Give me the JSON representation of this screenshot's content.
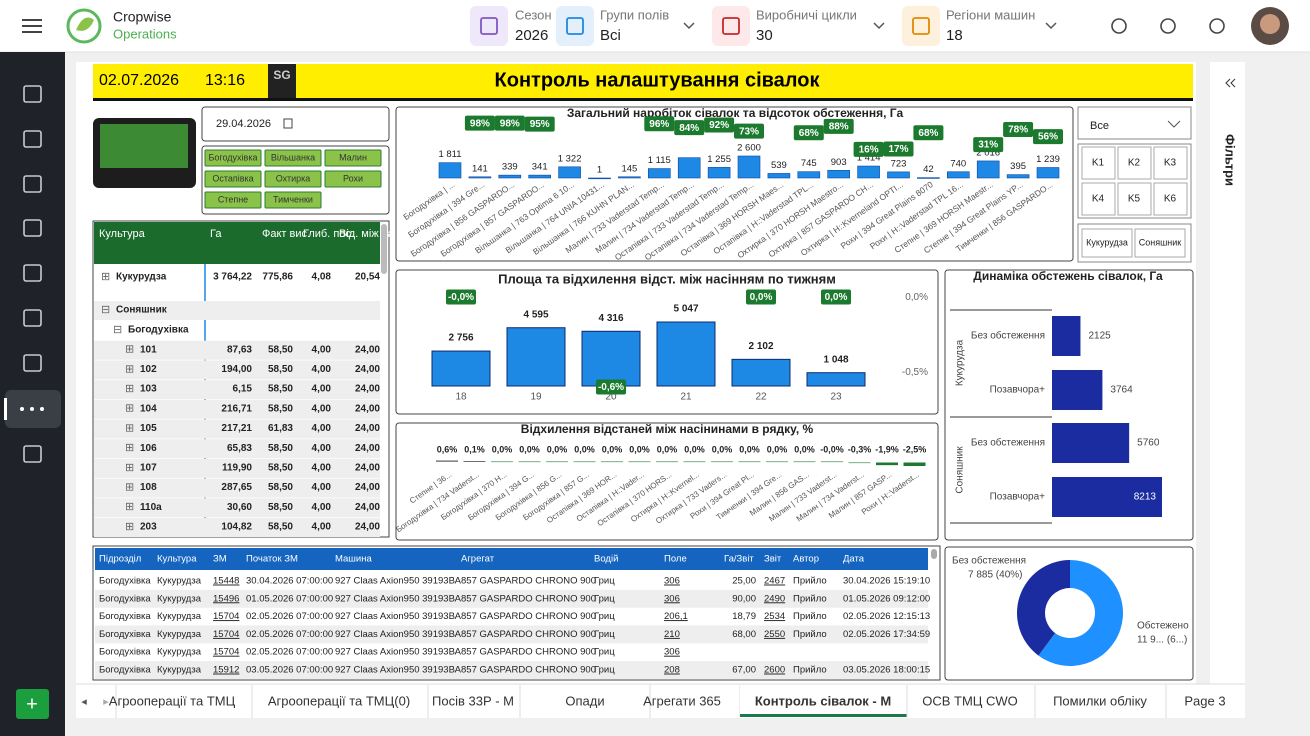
{
  "app": {
    "logo_line1": "Cropwise",
    "logo_line2": "Operations",
    "filters": [
      {
        "label": "Сезон",
        "value": "2026"
      },
      {
        "label": "Групи полів",
        "value": "Всі"
      },
      {
        "label": "Виробничі цикли",
        "value": "30"
      },
      {
        "label": "Регіони машин",
        "value": "18"
      }
    ]
  },
  "report": {
    "date": "02.07.2026",
    "time": "13:16",
    "logo": "SG",
    "title": "Контроль налаштування сівалок",
    "date_picker": "29.04.2026",
    "units": [
      "Богодухівка",
      "Вільшанка",
      "Малин",
      "Остапівка",
      "Охтирка",
      "Рохи",
      "Степне",
      "Тимченки"
    ],
    "slicer_all": "Все",
    "slicer_k": [
      "K1",
      "K2",
      "K3",
      "K4",
      "K5",
      "K6"
    ],
    "slicer_crops": [
      "Кукурудза",
      "Соняшник"
    ],
    "filters_pane": "Фільтри"
  },
  "tree_table": {
    "headers": [
      "Культура",
      "Га",
      "Факт вис.",
      "Глиб. пос.",
      "Від. між нас."
    ],
    "groups": [
      {
        "label": "Кукурудза",
        "cells": [
          "3 764,22",
          "775,86",
          "4,08",
          "20,54"
        ]
      },
      {
        "label": "Соняшник",
        "children": [
          {
            "label": "Богодухівка",
            "children": [
              {
                "label": "101",
                "cells": [
                  "87,63",
                  "58,50",
                  "4,00",
                  "24,00"
                ]
              },
              {
                "label": "102",
                "cells": [
                  "194,00",
                  "58,50",
                  "4,00",
                  "24,00"
                ]
              },
              {
                "label": "103",
                "cells": [
                  "6,15",
                  "58,50",
                  "4,00",
                  "24,00"
                ]
              },
              {
                "label": "104",
                "cells": [
                  "216,71",
                  "58,50",
                  "4,00",
                  "24,00"
                ]
              },
              {
                "label": "105",
                "cells": [
                  "217,21",
                  "61,83",
                  "4,00",
                  "24,00"
                ]
              },
              {
                "label": "106",
                "cells": [
                  "65,83",
                  "58,50",
                  "4,00",
                  "24,00"
                ]
              },
              {
                "label": "107",
                "cells": [
                  "119,90",
                  "58,50",
                  "4,00",
                  "24,00"
                ]
              },
              {
                "label": "108",
                "cells": [
                  "287,65",
                  "58,50",
                  "4,00",
                  "24,00"
                ]
              },
              {
                "label": "110а",
                "cells": [
                  "30,60",
                  "58,50",
                  "4,00",
                  "24,00"
                ]
              },
              {
                "label": "203",
                "cells": [
                  "104,82",
                  "58,50",
                  "4,00",
                  "24,00"
                ]
              }
            ]
          }
        ]
      }
    ]
  },
  "chart_data": [
    {
      "type": "bar",
      "title": "Загальний наробіток сівалок та відсоток обстеження, Га",
      "color": "#1e88e5",
      "categories": [
        "Богодухівка | ...",
        "Богодухівка | 394 Gre...",
        "Богодухівка | 856 GASPARDO...",
        "Богодухівка | 857 GASPARDO...",
        "Вільшанка | 763 Optima 6 10...",
        "Вільшанка | 764 UNIA 10431...",
        "Вільшанка | 766 KUHN PLAN...",
        "Малин | 733 Vaderstad Temp...",
        "Малин | 734 Vaderstad Temp...",
        "Остапівка | 733 Vaderstad Temp...",
        "Остапівка | 734 Vaderstad Temp...",
        "Остапівка | 369 HORSH Maes...",
        "Остапівка | H::Vaderstad TPL...",
        "Охтирка | 370 HORSH Maestro...",
        "Охтирка | 857 GASPARDO CH...",
        "Охтирка | H::Kverneland OPTI...",
        "Рохи | 394 Great Plains 8070",
        "Рохи | H::Vaderstad TPL 16...",
        "Степне | 369 HORSH Maestr...",
        "Степне | 394 Great Plains YP...",
        "Тимченки | 856 GASPARDO..."
      ],
      "values": [
        1811,
        141,
        339,
        341,
        1322,
        1,
        145,
        1115,
        2400,
        1255,
        2600,
        539,
        745,
        903,
        1414,
        723,
        42,
        740,
        2016,
        395,
        1239
      ],
      "value_labels": [
        "1 811",
        "141",
        "339",
        "341",
        "1 322",
        "1",
        "145",
        "1 115",
        null,
        "1 255",
        "2 600",
        "539",
        "745",
        "903",
        "1 414",
        "723",
        "42",
        "740",
        "2 016",
        "395",
        "1 239"
      ],
      "coverage": [
        null,
        98,
        98,
        95,
        null,
        null,
        null,
        96,
        84,
        92,
        73,
        null,
        68,
        88,
        16,
        17,
        68,
        null,
        31,
        78,
        56
      ],
      "coverage_labels": [
        null,
        "98%",
        "98%",
        "95%",
        null,
        null,
        null,
        "96%",
        "84%",
        "92%",
        "73%",
        null,
        "68%",
        "88%",
        "16%",
        "17%",
        "68%",
        null,
        "31%",
        "78%",
        "56%"
      ],
      "badge_color": "#1b7a2e"
    },
    {
      "type": "bar",
      "title": "Площа та відхилення відст. між насінням по тижням",
      "color": "#1e88e5",
      "categories": [
        "18",
        "19",
        "20",
        "21",
        "22",
        "23"
      ],
      "values": [
        2756,
        4595,
        4316,
        5047,
        2102,
        1048
      ],
      "value_labels": [
        "2 756",
        "4 595",
        "4 316",
        "5 047",
        "2 102",
        "1 048"
      ],
      "deviation": [
        0,
        null,
        -0.6,
        null,
        0,
        0
      ],
      "deviation_labels": [
        "-0,0%",
        null,
        "-0,6%",
        null,
        "0,0%",
        "0,0%"
      ],
      "y2lim": [
        -0.65,
        0.05
      ],
      "y2ticks": [
        {
          "value": 0,
          "label": "0,0%"
        },
        {
          "value": -0.5,
          "label": "-0,5%"
        }
      ],
      "badge_color": "#1b7a2e"
    },
    {
      "type": "diverging",
      "title": "Відхилення відстаней між насінинами в рядку, %",
      "color": "#1b7a2e",
      "positive_color": "#111111",
      "categories": [
        "Степне | 36...",
        "Богодухівка | 734 Vaderst...",
        "Богодухівка | 370 H...",
        "Богодухівка | 394 G...",
        "Богодухівка | 856 G...",
        "Богодухівка | 857 G...",
        "Остапівка | 369 HOR...",
        "Остапівка | H::Vader...",
        "Остапівка | 370 HORS...",
        "Охтирка | H::Kvernel...",
        "Охтирка | 733 Vaders...",
        "Рохи | 394 Great Pl...",
        "Тимченки | 394 Gre...",
        "Малин | 856 GAS...",
        "Малин | 733 Vaderst...",
        "Малин | 734 Vaderst...",
        "Малин | 857 GASP...",
        "Рохи | H::Vaderst..."
      ],
      "values": [
        0.6,
        0.1,
        0,
        0,
        0,
        0,
        0,
        0,
        0,
        0,
        0,
        0,
        0,
        0,
        0,
        -0.3,
        -1.9,
        -2.5
      ],
      "value_labels": [
        "0,6%",
        "0,1%",
        "0,0%",
        "0,0%",
        "0,0%",
        "0,0%",
        "0,0%",
        "0,0%",
        "0,0%",
        "0,0%",
        "0,0%",
        "0,0%",
        "0,0%",
        "0,0%",
        "-0,0%",
        "-0,3%",
        "-1,9%",
        "-2,5%"
      ]
    },
    {
      "type": "barh",
      "title": "Динаміка обстежень сівалок, Га",
      "color": "#1a2ca0",
      "groups": [
        {
          "name": "Кукурудза",
          "categories": [
            "Без обстеження",
            "Позавчора+"
          ],
          "values": [
            2125,
            3764
          ]
        },
        {
          "name": "Соняшник",
          "categories": [
            "Без обстеження",
            "Позавчора+"
          ],
          "values": [
            5760,
            8213
          ]
        }
      ]
    },
    {
      "type": "pie",
      "hole": true,
      "labels": [
        "Обстежено",
        "Без обстеження"
      ],
      "values": [
        11900,
        7885
      ],
      "value_labels": [
        "11 9... (6...)",
        "7 885 (40%)"
      ],
      "colors": [
        "#1e90ff",
        "#1a2ca0"
      ]
    }
  ],
  "records_table": {
    "headers": [
      "Підрозділ",
      "Культура",
      "ЗМ",
      "Початок ЗМ",
      "Машина",
      "Агрегат",
      "Водій",
      "Поле",
      "Га/Звіт",
      "Звіт",
      "Автор",
      "Дата"
    ],
    "rows": [
      [
        "Богодухівка",
        "Кукурудза",
        "15448",
        "30.04.2026 07:00:00",
        "927 Claas Axion950 39193ВА",
        "857 GASPARDO CHRONO 900",
        "Гриц",
        "306",
        "25,00",
        "2467",
        "Прийло",
        "30.04.2026 15:19:10"
      ],
      [
        "Богодухівка",
        "Кукурудза",
        "15496",
        "01.05.2026 07:00:00",
        "927 Claas Axion950 39193ВА",
        "857 GASPARDO CHRONO 900",
        "Гриц",
        "306",
        "90,00",
        "2490",
        "Прийло",
        "01.05.2026 09:12:00"
      ],
      [
        "Богодухівка",
        "Кукурудза",
        "15704",
        "02.05.2026 07:00:00",
        "927 Claas Axion950 39193ВА",
        "857 GASPARDO CHRONO 900",
        "Гриц",
        "206,1",
        "18,79",
        "2534",
        "Прийло",
        "02.05.2026 12:15:13"
      ],
      [
        "Богодухівка",
        "Кукурудза",
        "15704",
        "02.05.2026 07:00:00",
        "927 Claas Axion950 39193ВА",
        "857 GASPARDO CHRONO 900",
        "Гриц",
        "210",
        "68,00",
        "2550",
        "Прийло",
        "02.05.2026 17:34:59"
      ],
      [
        "Богодухівка",
        "Кукурудза",
        "15704",
        "02.05.2026 07:00:00",
        "927 Claas Axion950 39193ВА",
        "857 GASPARDO CHRONO 900",
        "Гриц",
        "306",
        null,
        null,
        null,
        null
      ],
      [
        "Богодухівка",
        "Кукурудза",
        "15912",
        "03.05.2026 07:00:00",
        "927 Claas Axion950 39193ВА",
        "857 GASPARDO CHRONO 900",
        "Гриц",
        "208",
        "67,00",
        "2600",
        "Прийло",
        "03.05.2026 18:00:15"
      ]
    ]
  },
  "tabs": [
    "Агрооперації та ТМЦ",
    "Агрооперації та ТМЦ(0)",
    "Посів 33Р - М",
    "Опади",
    "Агрегати 365",
    "Контроль сівалок - М",
    "ОСВ ТМЦ CWO",
    "Помилки обліку",
    "Page 3"
  ],
  "active_tab": 5
}
